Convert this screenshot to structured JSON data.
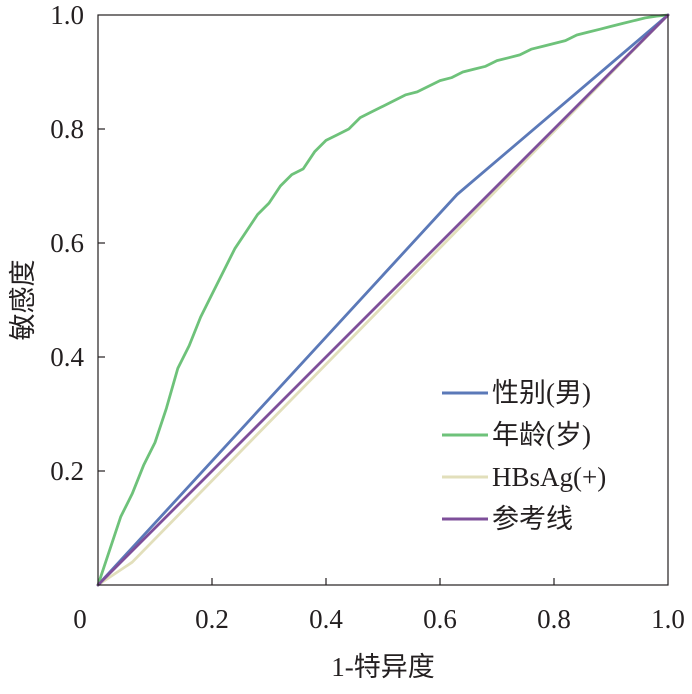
{
  "chart_data": {
    "type": "line",
    "title": "",
    "xlabel": "1-特异度",
    "ylabel": "敏感度",
    "xlim": [
      0,
      1
    ],
    "ylim": [
      0,
      1
    ],
    "x_ticks": [
      "0",
      "0.2",
      "0.4",
      "0.6",
      "0.8",
      "1.0"
    ],
    "y_ticks": [
      "0.2",
      "0.4",
      "0.6",
      "0.8",
      "1.0"
    ],
    "grid": false,
    "legend_position": "bottom-right",
    "series": [
      {
        "name": "性别(男)",
        "color": "#5b79b8",
        "x": [
          0,
          0.63,
          1
        ],
        "y": [
          0,
          0.685,
          1
        ]
      },
      {
        "name": "年龄(岁)",
        "color": "#6ec27a",
        "x": [
          0,
          0.01,
          0.02,
          0.03,
          0.04,
          0.06,
          0.08,
          0.1,
          0.12,
          0.14,
          0.16,
          0.18,
          0.2,
          0.22,
          0.24,
          0.26,
          0.28,
          0.3,
          0.32,
          0.34,
          0.36,
          0.38,
          0.4,
          0.42,
          0.44,
          0.46,
          0.48,
          0.5,
          0.52,
          0.54,
          0.56,
          0.58,
          0.6,
          0.62,
          0.64,
          0.66,
          0.68,
          0.7,
          0.72,
          0.74,
          0.76,
          0.78,
          0.8,
          0.82,
          0.84,
          0.86,
          0.88,
          0.9,
          0.92,
          0.94,
          0.96,
          0.98,
          1.0
        ],
        "y": [
          0,
          0.03,
          0.06,
          0.09,
          0.12,
          0.16,
          0.21,
          0.25,
          0.31,
          0.38,
          0.42,
          0.47,
          0.51,
          0.55,
          0.59,
          0.62,
          0.65,
          0.67,
          0.7,
          0.72,
          0.73,
          0.76,
          0.78,
          0.79,
          0.8,
          0.82,
          0.83,
          0.84,
          0.85,
          0.86,
          0.865,
          0.875,
          0.885,
          0.89,
          0.9,
          0.905,
          0.91,
          0.92,
          0.925,
          0.93,
          0.94,
          0.945,
          0.95,
          0.955,
          0.965,
          0.97,
          0.975,
          0.98,
          0.985,
          0.99,
          0.995,
          0.998,
          1.0
        ]
      },
      {
        "name": "HBsAg(+)",
        "color": "#e2dfbb",
        "x": [
          0,
          0.06,
          1
        ],
        "y": [
          0,
          0.04,
          1
        ]
      },
      {
        "name": "参考线",
        "color": "#7e4f9a",
        "x": [
          0,
          1
        ],
        "y": [
          0,
          1
        ]
      }
    ]
  }
}
